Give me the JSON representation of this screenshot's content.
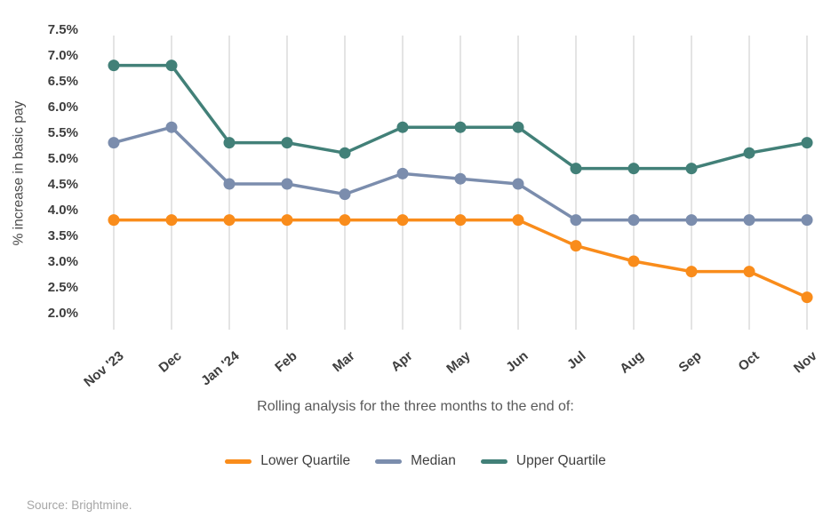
{
  "source": "Source: Brightmine.",
  "chart_data": {
    "type": "line",
    "title": "",
    "xlabel": "Rolling analysis for the three months to the end of:",
    "ylabel": "% increase in basic pay",
    "categories": [
      "Nov '23",
      "Dec",
      "Jan '24",
      "Feb",
      "Mar",
      "Apr",
      "May",
      "Jun",
      "Jul",
      "Aug",
      "Sep",
      "Oct",
      "Nov"
    ],
    "series": [
      {
        "name": "Lower Quartile",
        "color": "#F98C1B",
        "values": [
          3.8,
          3.8,
          3.8,
          3.8,
          3.8,
          3.8,
          3.8,
          3.8,
          3.3,
          3.0,
          2.8,
          2.8,
          2.3
        ]
      },
      {
        "name": "Median",
        "color": "#7B8DAD",
        "values": [
          5.3,
          5.6,
          4.5,
          4.5,
          4.3,
          4.7,
          4.6,
          4.5,
          3.8,
          3.8,
          3.8,
          3.8,
          3.8
        ]
      },
      {
        "name": "Upper Quartile",
        "color": "#428078",
        "values": [
          6.8,
          6.8,
          5.3,
          5.3,
          5.1,
          5.6,
          5.6,
          5.6,
          4.8,
          4.8,
          4.8,
          5.1,
          5.3
        ]
      }
    ],
    "ylim": [
      2.0,
      7.5
    ],
    "ytick_step": 0.5,
    "ytick_labels": [
      "7.5%",
      "7.0%",
      "6.5%",
      "6.0%",
      "5.5%",
      "5.0%",
      "4.5%",
      "4.0%",
      "3.5%",
      "3.0%",
      "2.5%",
      "2.0%"
    ],
    "grid": "vertical-only",
    "gridline_color": "#DBDBDB",
    "legend_position": "bottom",
    "tick_label_color": "#3E3E3E",
    "axis_title_color": "#595959"
  }
}
